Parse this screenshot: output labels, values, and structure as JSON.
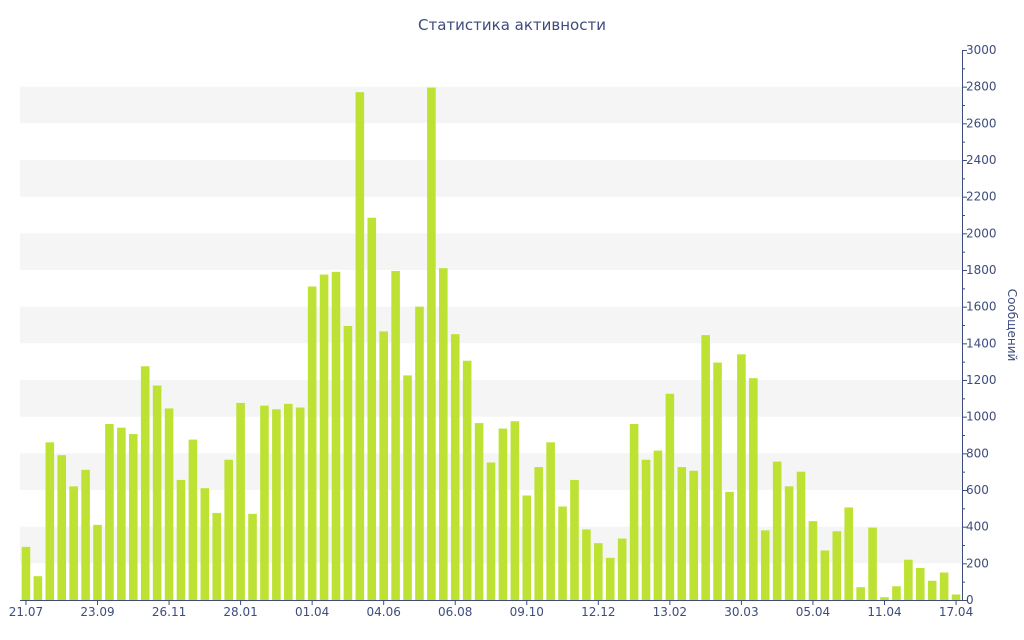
{
  "chart_data": {
    "type": "bar",
    "title": "Статистика активности",
    "ylabel": "Сообщений",
    "ylim": [
      0,
      3000
    ],
    "yticks": [
      0,
      200,
      400,
      600,
      800,
      1000,
      1200,
      1400,
      1600,
      1800,
      2000,
      2200,
      2400,
      2600,
      2800,
      3000
    ],
    "y_axis_side": "right",
    "grid": "alternating horizontal bands",
    "x_tick_labels": [
      {
        "index": 0,
        "label": "21.07"
      },
      {
        "index": 6,
        "label": "23.09"
      },
      {
        "index": 12,
        "label": "26.11"
      },
      {
        "index": 18,
        "label": "28.01"
      },
      {
        "index": 24,
        "label": "01.04"
      },
      {
        "index": 30,
        "label": "04.06"
      },
      {
        "index": 36,
        "label": "06.08"
      },
      {
        "index": 42,
        "label": "09.10"
      },
      {
        "index": 48,
        "label": "12.12"
      },
      {
        "index": 54,
        "label": "13.02"
      },
      {
        "index": 60,
        "label": "30.03"
      },
      {
        "index": 66,
        "label": "05.04"
      },
      {
        "index": 72,
        "label": "11.04"
      },
      {
        "index": 78,
        "label": "17.04"
      }
    ],
    "values": [
      290,
      130,
      860,
      790,
      620,
      710,
      410,
      960,
      940,
      905,
      1275,
      1170,
      1045,
      655,
      875,
      610,
      475,
      765,
      1075,
      470,
      1060,
      1040,
      1070,
      1050,
      1710,
      1775,
      1790,
      1495,
      2770,
      2085,
      1465,
      1795,
      1225,
      1600,
      2795,
      1810,
      1450,
      1305,
      965,
      750,
      935,
      975,
      570,
      725,
      860,
      510,
      655,
      385,
      310,
      230,
      335,
      960,
      765,
      815,
      1125,
      725,
      705,
      1445,
      1295,
      590,
      1340,
      1210,
      380,
      755,
      620,
      700,
      430,
      270,
      375,
      505,
      70,
      395,
      15,
      75,
      220,
      175,
      105,
      150,
      30
    ],
    "colors": {
      "bar": "#bde234",
      "text": "#3e4c7c",
      "band": "#f5f5f5",
      "axis": "#3e4c7c"
    }
  }
}
